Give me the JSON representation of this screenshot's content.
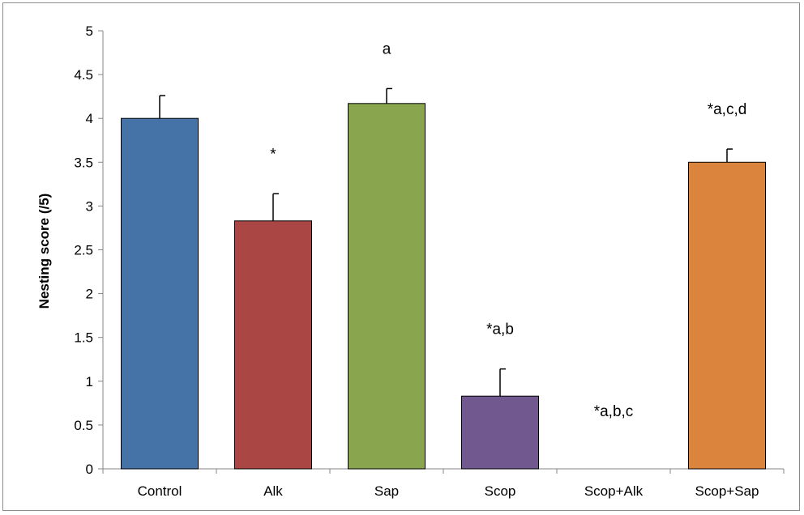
{
  "chart_data": {
    "type": "bar",
    "title": "",
    "xlabel": "",
    "ylabel": "Nesting score (/5)",
    "ylim": [
      0,
      5
    ],
    "yticks": [
      "0",
      "0.5",
      "1",
      "1.5",
      "2",
      "2.5",
      "3",
      "3.5",
      "4",
      "4.5",
      "5"
    ],
    "grid": false,
    "categories": [
      "Control",
      "Alk",
      "Sap",
      "Scop",
      "Scop+Alk",
      "Scop+Sap"
    ],
    "values": [
      4.0,
      2.83,
      4.17,
      0.83,
      0.0,
      3.5
    ],
    "errors": [
      0.26,
      0.31,
      0.17,
      0.31,
      0.0,
      0.15
    ],
    "annotations": [
      "",
      "*",
      "a",
      "*a,b",
      "*a,b,c",
      "*a,c,d"
    ],
    "colors": [
      "#4572A7",
      "#AA4643",
      "#89A54E",
      "#71588F",
      "#4198AF",
      "#DB843D"
    ]
  }
}
